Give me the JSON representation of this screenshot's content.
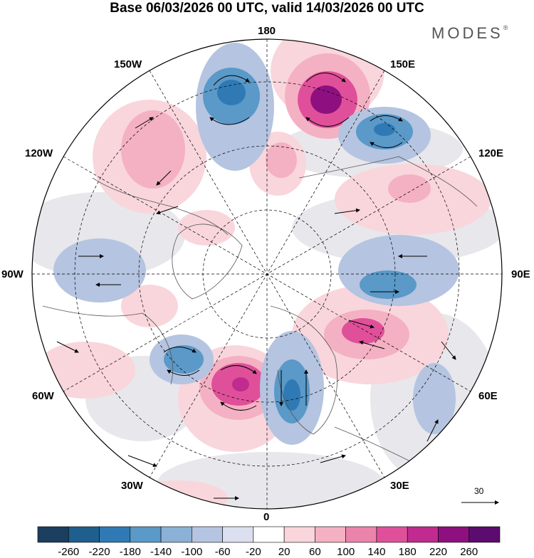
{
  "header": {
    "title": "Base 06/03/2026 00 UTC, valid 14/03/2026 00 UTC",
    "brand": "MODES"
  },
  "map": {
    "longitude_labels": {
      "top": "180",
      "bottom": "0",
      "left": "90W",
      "right": "90E",
      "upper_left": "150W",
      "upper_right": "150E",
      "mid_left": "120W",
      "mid_right": "120E",
      "lower_left": "60W",
      "lower_right": "60E",
      "bottom_left": "30W",
      "bottom_right": "30E"
    },
    "vector_scale": "30"
  },
  "colorbar": {
    "labels": [
      "-260",
      "-220",
      "-180",
      "-140",
      "-100",
      "-60",
      "-20",
      "20",
      "60",
      "100",
      "140",
      "180",
      "220",
      "260"
    ],
    "colors": [
      "#1b3f5e",
      "#1f5f8e",
      "#2f7ab4",
      "#5a99c8",
      "#8bb1d6",
      "#b5c4e0",
      "#dcdff0",
      "#ffffff",
      "#f9d6dc",
      "#f4b1c3",
      "#ec83ab",
      "#e0509a",
      "#c12a8f",
      "#8e1080",
      "#5c0b6e"
    ]
  },
  "anomalies": {
    "blue_color": "#4a8fc4",
    "pink_color": "#e0509a",
    "grey_color": "#e9e9ed"
  }
}
